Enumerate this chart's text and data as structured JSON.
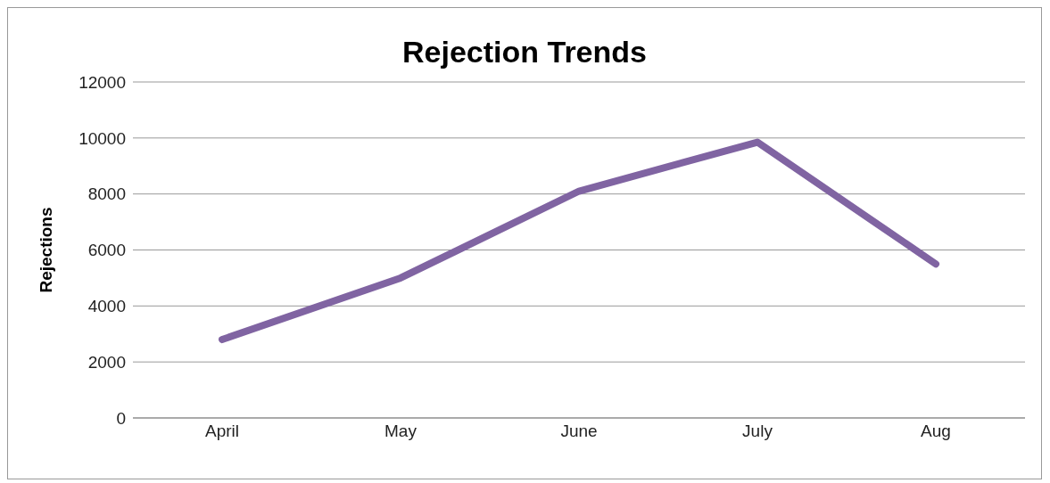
{
  "chart_data": {
    "type": "line",
    "title": "Rejection Trends",
    "ylabel": "Rejections",
    "categories": [
      "April",
      "May",
      "June",
      "July",
      "Aug"
    ],
    "series": [
      {
        "color": "#8064a2",
        "values": [
          2800,
          5000,
          8100,
          9850,
          5500
        ]
      }
    ],
    "ylim": [
      0,
      12000
    ],
    "yticks": [
      0,
      2000,
      4000,
      6000,
      8000,
      10000,
      12000
    ],
    "grid": "y",
    "legend": false,
    "marker": "none",
    "line_style": "solid"
  }
}
